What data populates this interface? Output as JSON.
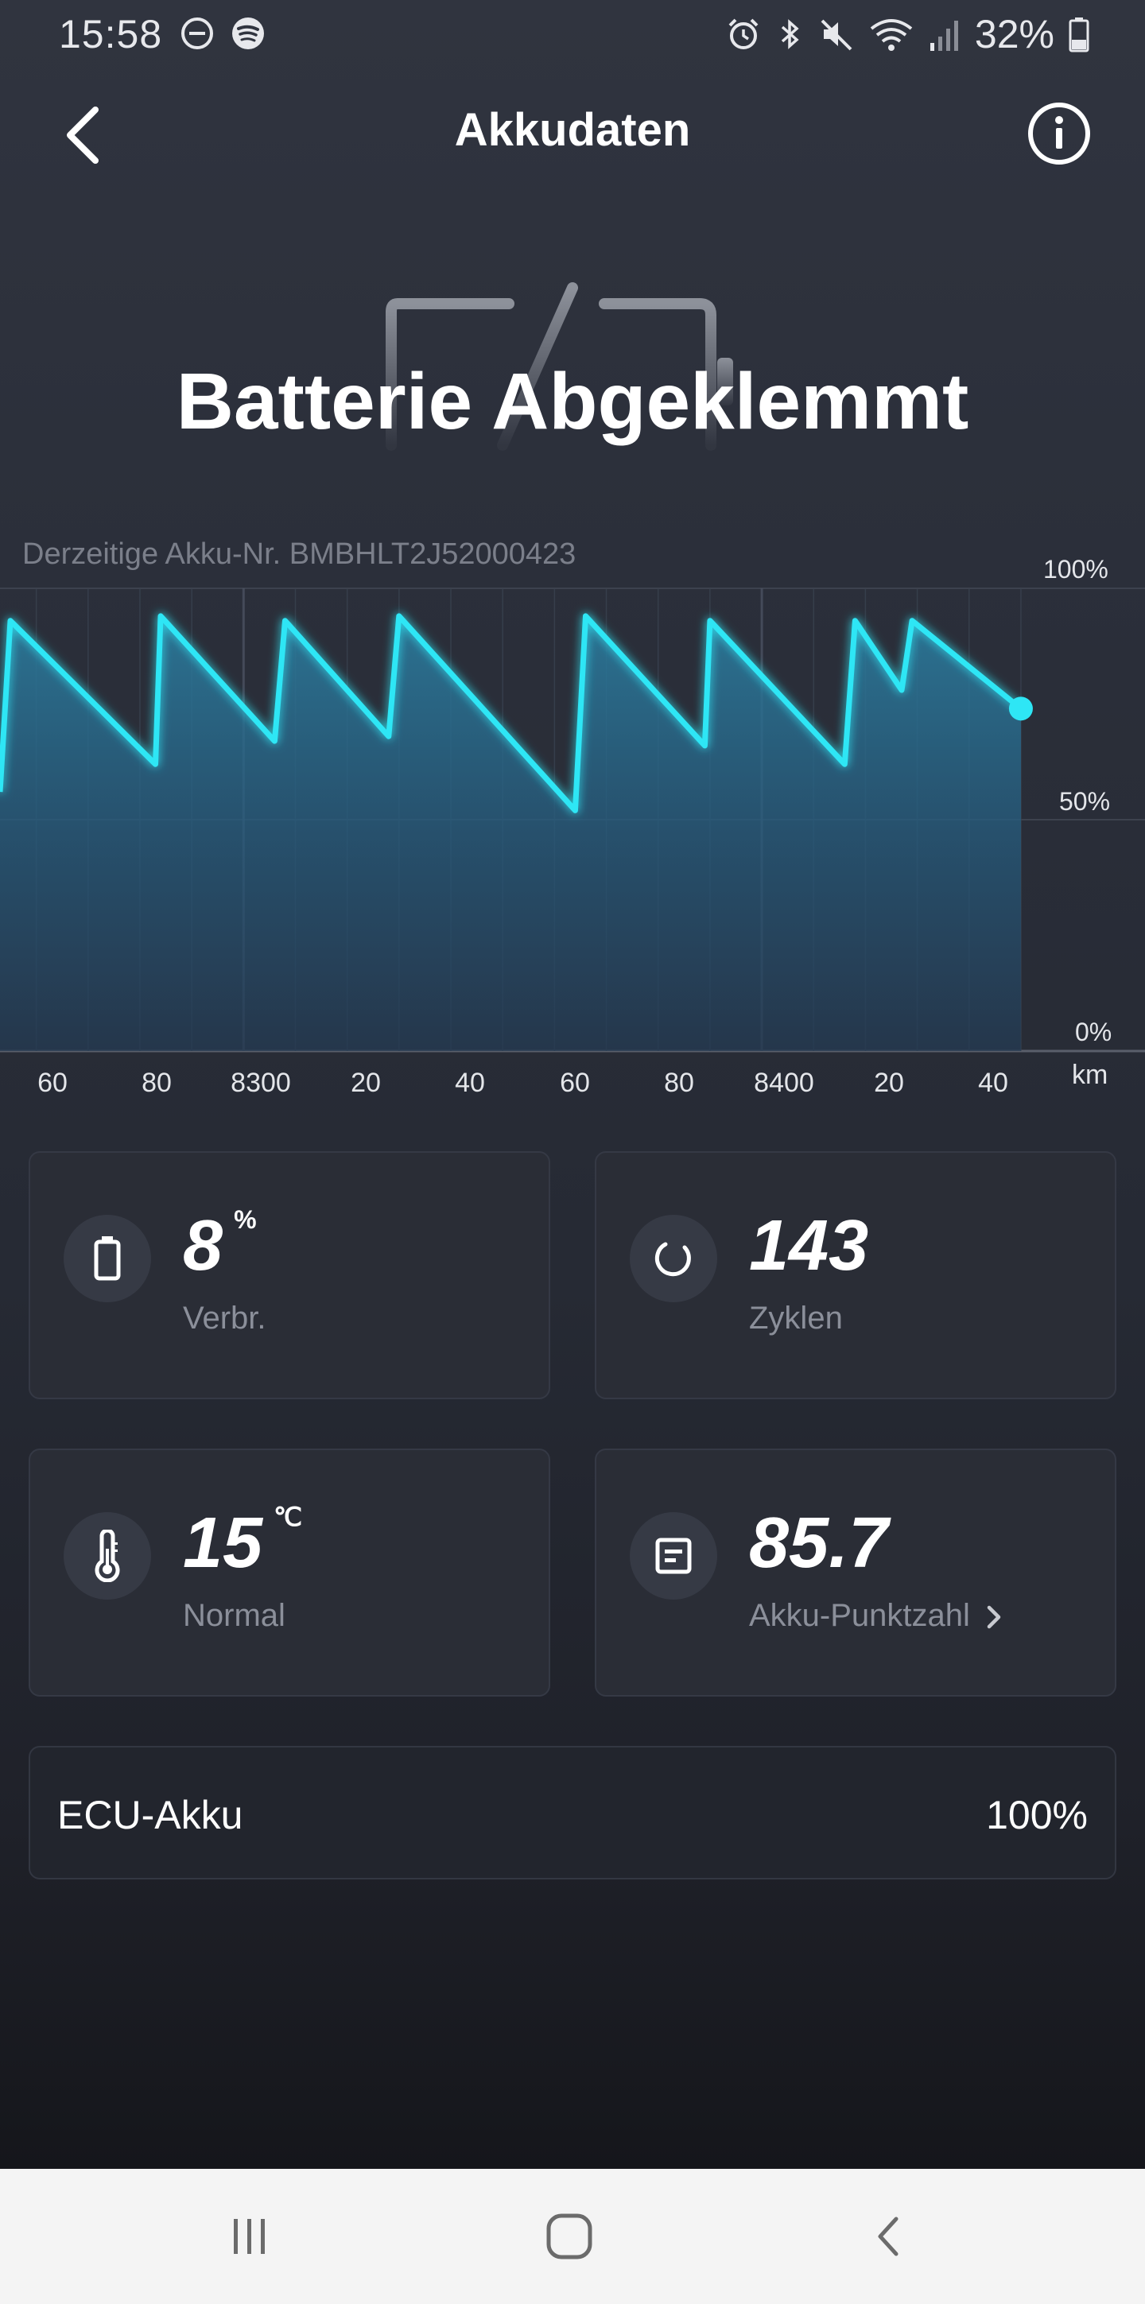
{
  "status_bar": {
    "time": "15:58",
    "battery_percent": "32%",
    "left_icons": [
      "dnd-icon",
      "spotify-icon"
    ],
    "right_icons": [
      "alarm-icon",
      "bluetooth-icon",
      "mute-icon",
      "wifi-icon",
      "signal-icon",
      "battery-icon"
    ]
  },
  "header": {
    "title": "Akkudaten",
    "back_icon": "chevron-left-icon",
    "info_icon": "info-icon"
  },
  "hero": {
    "status": "Batterie Abgeklemmt",
    "icon": "battery-disconnected-icon"
  },
  "chart": {
    "battery_number": "Derzeitige Akku-Nr. BMBHLT2J52000423",
    "x_unit": "km",
    "x_tick_labels": [
      "60",
      "80",
      "8300",
      "20",
      "40",
      "60",
      "80",
      "8400",
      "20",
      "40"
    ],
    "y_tick_labels": [
      "100%",
      "50%",
      "0%"
    ]
  },
  "chart_data": {
    "type": "area",
    "xlabel": "km",
    "ylabel": "",
    "x_ticks": [
      8260,
      8280,
      8300,
      8320,
      8340,
      8360,
      8380,
      8400,
      8420,
      8440
    ],
    "xlim": [
      8253,
      8454
    ],
    "ylim": [
      0,
      100
    ],
    "y_ticks": [
      0,
      50,
      100
    ],
    "grid": true,
    "series": [
      {
        "x": [
          8253,
          8255,
          8283,
          8284,
          8306,
          8308,
          8328,
          8330,
          8364,
          8366,
          8389,
          8390,
          8416,
          8418,
          8427,
          8429,
          8450
        ],
        "values": [
          56,
          93,
          62,
          94,
          67,
          93,
          68,
          94,
          52,
          94,
          66,
          93,
          62,
          93,
          78,
          93,
          74
        ]
      }
    ],
    "color": "#2ee6f5"
  },
  "cards": [
    {
      "value": "8",
      "unit": "%",
      "label": "Verbr.",
      "icon": "battery-outline-icon"
    },
    {
      "value": "143",
      "unit": "",
      "label": "Zyklen",
      "icon": "refresh-icon"
    },
    {
      "value": "15",
      "unit": "℃",
      "label": "Normal",
      "icon": "thermometer-icon"
    },
    {
      "value": "85.7",
      "unit": "",
      "label": "Akku-Punktzahl",
      "icon": "score-icon"
    }
  ],
  "ecu": {
    "label": "ECU-Akku",
    "value": "100%"
  },
  "nav": {
    "icons": [
      "recent-apps-icon",
      "home-icon",
      "back-icon"
    ]
  },
  "colors": {
    "accent": "#2ee6f5",
    "background": "#2b2f3a",
    "card": "#2a2d36",
    "muted_text": "#8b8f9a"
  }
}
